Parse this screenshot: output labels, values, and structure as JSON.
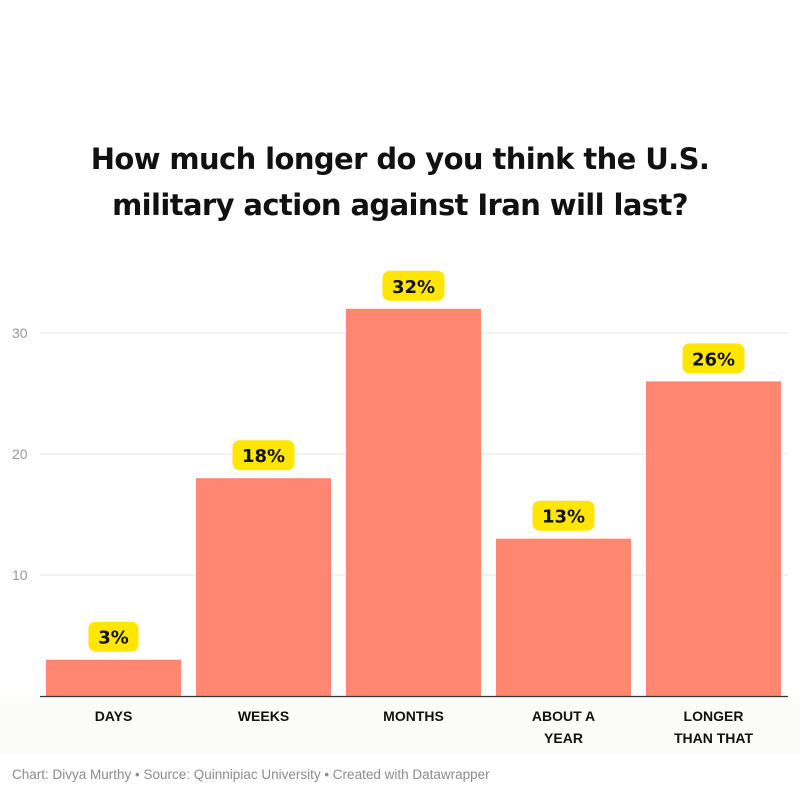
{
  "chart_data": {
    "type": "bar",
    "title": "How much longer do you think the U.S. military action against Iran will last?",
    "title_lines": [
      "How much longer do you think the U.S.",
      "military action against Iran will last?"
    ],
    "categories": [
      "DAYS",
      "WEEKS",
      "MONTHS",
      "ABOUT A YEAR",
      "LONGER THAN THAT"
    ],
    "category_lines": [
      [
        "DAYS"
      ],
      [
        "WEEKS"
      ],
      [
        "MONTHS"
      ],
      [
        "ABOUT A",
        "YEAR"
      ],
      [
        "LONGER",
        "THAN THAT"
      ]
    ],
    "values": [
      3,
      18,
      32,
      13,
      26
    ],
    "value_labels": [
      "3%",
      "18%",
      "32%",
      "13%",
      "26%"
    ],
    "xlabel": "",
    "ylabel": "",
    "ylim": [
      0,
      35
    ],
    "yticks": [
      10,
      20,
      30
    ],
    "ytick_labels": [
      "10",
      "20",
      "30"
    ],
    "grid": true,
    "legend": "none",
    "colors": {
      "bar": "#ff8770",
      "label_highlight": "#ffe600",
      "gridline": "#e6e6e6",
      "axis": "#333333"
    }
  },
  "footer": {
    "credit": "Chart: Divya Murthy • Source: Quinnipiac University • Created with Datawrapper"
  }
}
